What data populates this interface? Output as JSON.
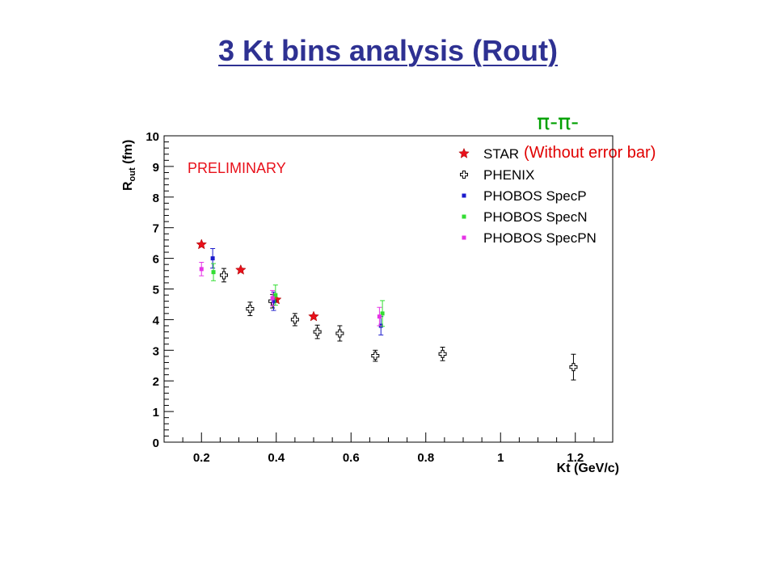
{
  "slide": {
    "title": "3 Kt bins analysis (Rout)",
    "particle_label": "π-π-",
    "note": "(Without error bar)"
  },
  "chart_data": {
    "type": "scatter",
    "xlabel": "Kt (GeV/c)",
    "ylabel": "R_out (fm)",
    "xlim": [
      0.1,
      1.3
    ],
    "ylim": [
      0,
      10
    ],
    "xticks": [
      0.2,
      0.4,
      0.6,
      0.8,
      1,
      1.2
    ],
    "xtick_labels": [
      "0.2",
      "0.4",
      "0.6",
      "0.8",
      "1",
      "1.2"
    ],
    "yticks": [
      0,
      1,
      2,
      3,
      4,
      5,
      6,
      7,
      8,
      9,
      10
    ],
    "ytick_labels": [
      "0",
      "1",
      "2",
      "3",
      "4",
      "5",
      "6",
      "7",
      "8",
      "9",
      "10"
    ],
    "annotation": "PRELIMINARY",
    "grid": false,
    "legend_position": "top-right",
    "series": [
      {
        "name": "STAR",
        "marker": "star",
        "color": "#e8101a",
        "points": [
          {
            "x": 0.2,
            "y": 6.45
          },
          {
            "x": 0.305,
            "y": 5.62
          },
          {
            "x": 0.4,
            "y": 4.65
          },
          {
            "x": 0.5,
            "y": 4.1
          }
        ]
      },
      {
        "name": "PHENIX",
        "marker": "open-cross",
        "color": "#000000",
        "points": [
          {
            "x": 0.26,
            "y": 5.45,
            "err": 0.22
          },
          {
            "x": 0.33,
            "y": 4.35,
            "err": 0.22
          },
          {
            "x": 0.39,
            "y": 4.6,
            "err": 0.22
          },
          {
            "x": 0.45,
            "y": 4.0,
            "err": 0.2
          },
          {
            "x": 0.51,
            "y": 3.6,
            "err": 0.22
          },
          {
            "x": 0.57,
            "y": 3.55,
            "err": 0.25
          },
          {
            "x": 0.665,
            "y": 2.82,
            "err": 0.18
          },
          {
            "x": 0.845,
            "y": 2.88,
            "err": 0.22
          },
          {
            "x": 1.195,
            "y": 2.45,
            "err": 0.42
          }
        ]
      },
      {
        "name": "PHOBOS SpecP",
        "marker": "square",
        "color": "#1a1acc",
        "points": [
          {
            "x": 0.23,
            "y": 6.0,
            "err": 0.32
          },
          {
            "x": 0.393,
            "y": 4.6,
            "err": 0.3
          },
          {
            "x": 0.68,
            "y": 3.8,
            "err": 0.3
          }
        ]
      },
      {
        "name": "PHOBOS SpecN",
        "marker": "square",
        "color": "#33dd33",
        "points": [
          {
            "x": 0.232,
            "y": 5.55,
            "err": 0.28
          },
          {
            "x": 0.398,
            "y": 4.8,
            "err": 0.33
          },
          {
            "x": 0.684,
            "y": 4.2,
            "err": 0.42
          }
        ]
      },
      {
        "name": "PHOBOS SpecPN",
        "marker": "square",
        "color": "#e633e6",
        "points": [
          {
            "x": 0.2,
            "y": 5.65,
            "err": 0.22
          },
          {
            "x": 0.39,
            "y": 4.7,
            "err": 0.25
          },
          {
            "x": 0.676,
            "y": 4.1,
            "err": 0.3
          }
        ]
      }
    ]
  }
}
